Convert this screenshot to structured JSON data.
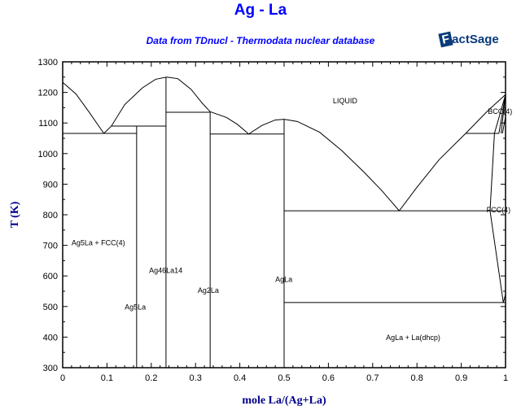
{
  "chart_data": {
    "type": "line",
    "title": "Ag - La",
    "subtitle": "Data from TDnucl - Thermodata nuclear database",
    "logo": "FactSage",
    "xlabel": "mole La/(Ag+La)",
    "ylabel": "T (K)",
    "xlim": [
      0,
      1
    ],
    "ylim": [
      300,
      1300
    ],
    "xticks": [
      "0",
      "0.1",
      "0.2",
      "0.3",
      "0.4",
      "0.5",
      "0.6",
      "0.7",
      "0.8",
      "0.9",
      "1"
    ],
    "yticks": [
      "300",
      "400",
      "500",
      "600",
      "700",
      "800",
      "900",
      "1000",
      "1100",
      "1200",
      "1300"
    ],
    "grid": false,
    "line_color": "#000000",
    "curves": [
      [
        [
          0,
          1233
        ],
        [
          0.03,
          1195
        ],
        [
          0.06,
          1135
        ],
        [
          0.093,
          1066
        ]
      ],
      [
        [
          0.093,
          1066
        ],
        [
          0.11,
          1090
        ],
        [
          0.14,
          1160
        ],
        [
          0.18,
          1215
        ],
        [
          0.21,
          1243
        ],
        [
          0.235,
          1250
        ],
        [
          0.26,
          1245
        ],
        [
          0.29,
          1210
        ],
        [
          0.315,
          1165
        ],
        [
          0.333,
          1137
        ]
      ],
      [
        [
          0.333,
          1137
        ],
        [
          0.37,
          1118
        ],
        [
          0.395,
          1095
        ],
        [
          0.42,
          1064
        ],
        [
          0.45,
          1092
        ],
        [
          0.48,
          1110
        ],
        [
          0.5,
          1112
        ],
        [
          0.53,
          1105
        ],
        [
          0.58,
          1070
        ],
        [
          0.63,
          1010
        ],
        [
          0.68,
          940
        ],
        [
          0.72,
          880
        ],
        [
          0.76,
          813
        ]
      ],
      [
        [
          0.76,
          813
        ],
        [
          0.8,
          890
        ],
        [
          0.85,
          980
        ],
        [
          0.91,
          1066
        ],
        [
          0.96,
          1140
        ],
        [
          1,
          1193
        ]
      ],
      [
        [
          0,
          1066
        ],
        [
          0.167,
          1066
        ]
      ],
      [
        [
          0.11,
          1090
        ],
        [
          0.2333,
          1090
        ]
      ],
      [
        [
          0.2333,
          1135
        ],
        [
          0.333,
          1135
        ]
      ],
      [
        [
          0.333,
          1064
        ],
        [
          0.5,
          1064
        ]
      ],
      [
        [
          0.5,
          813
        ],
        [
          1,
          813
        ]
      ],
      [
        [
          0.5,
          513
        ],
        [
          1,
          513
        ]
      ],
      [
        [
          0.91,
          1066
        ],
        [
          0.985,
          1066
        ]
      ],
      [
        [
          0.167,
          300
        ],
        [
          0.167,
          1090
        ]
      ],
      [
        [
          0.2333,
          300
        ],
        [
          0.2333,
          1250
        ]
      ],
      [
        [
          0.333,
          300
        ],
        [
          0.333,
          1137
        ]
      ],
      [
        [
          0.5,
          300
        ],
        [
          0.5,
          1112
        ]
      ],
      [
        [
          1,
          1193
        ],
        [
          0.975,
          1066
        ],
        [
          0.965,
          813
        ],
        [
          0.995,
          513
        ]
      ],
      [
        [
          1,
          1193
        ],
        [
          0.985,
          1066
        ]
      ],
      [
        [
          1,
          1193
        ],
        [
          0.99,
          1066
        ]
      ],
      [
        [
          0.993,
          1066
        ],
        [
          1,
          1120
        ]
      ],
      [
        [
          0.995,
          513
        ],
        [
          1,
          540
        ]
      ]
    ],
    "annotations": [
      {
        "text": "LIQUID",
        "x": 0.61,
        "y": 1165
      },
      {
        "text": "Ag5La + FCC(4)",
        "x": 0.02,
        "y": 700
      },
      {
        "text": "Ag46La14",
        "x": 0.195,
        "y": 610
      },
      {
        "text": "Ag5La",
        "x": 0.14,
        "y": 490
      },
      {
        "text": "Ag2La",
        "x": 0.305,
        "y": 545
      },
      {
        "text": "AgLa",
        "x": 0.48,
        "y": 580
      },
      {
        "text": "AgLa + La(dhcp)",
        "x": 0.73,
        "y": 390
      },
      {
        "text": "BCC(4)",
        "x": 0.96,
        "y": 1130
      },
      {
        "text": "FCC(4)",
        "x": 0.957,
        "y": 808
      }
    ]
  }
}
